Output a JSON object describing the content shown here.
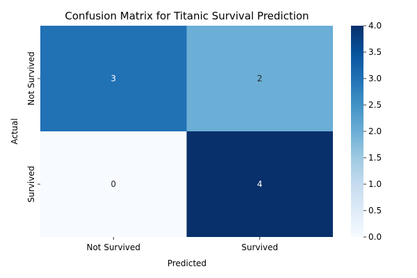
{
  "chart_data": {
    "type": "heatmap",
    "title": "Confusion Matrix for Titanic Survival Prediction",
    "xlabel": "Predicted",
    "ylabel": "Actual",
    "x_categories": [
      "Not Survived",
      "Survived"
    ],
    "y_categories": [
      "Not Survived",
      "Survived"
    ],
    "values": [
      [
        3,
        2
      ],
      [
        0,
        4
      ]
    ],
    "colormap": "Blues",
    "colorbar_range": [
      0.0,
      4.0
    ],
    "colorbar_ticks": [
      "0.0",
      "0.5",
      "1.0",
      "1.5",
      "2.0",
      "2.5",
      "3.0",
      "3.5",
      "4.0"
    ],
    "annotations_shown": true,
    "grid": false
  }
}
